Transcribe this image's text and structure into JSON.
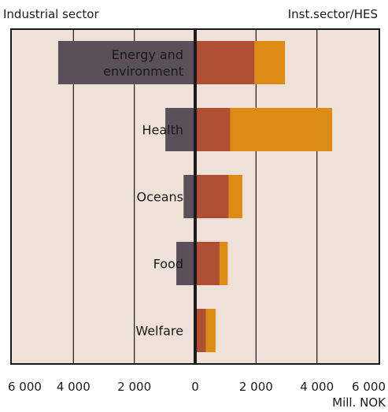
{
  "chart_data": {
    "type": "bar",
    "orientation": "horizontal-diverging",
    "left_label": "Industrial sector",
    "right_label": "Inst.sector/HES",
    "unit_label": "Mill. NOK",
    "xlim": [
      -6000,
      6000
    ],
    "x_ticks": [
      {
        "value": -6000,
        "label": "6 000"
      },
      {
        "value": -4000,
        "label": "4 000"
      },
      {
        "value": -2000,
        "label": "2 000"
      },
      {
        "value": 0,
        "label": "0"
      },
      {
        "value": 2000,
        "label": "2 000"
      },
      {
        "value": 4000,
        "label": "4 000"
      },
      {
        "value": 6000,
        "label": "6 000"
      }
    ],
    "categories": [
      {
        "label": [
          "Energy and",
          "environment"
        ],
        "industrial": 4500,
        "inst": 1950,
        "hes": 1000
      },
      {
        "label": [
          "Health"
        ],
        "industrial": 980,
        "inst": 1150,
        "hes": 3350
      },
      {
        "label": [
          "Oceans"
        ],
        "industrial": 380,
        "inst": 1100,
        "hes": 450
      },
      {
        "label": [
          "Food"
        ],
        "industrial": 620,
        "inst": 800,
        "hes": 270
      },
      {
        "label": [
          "Welfare"
        ],
        "industrial": 0,
        "inst": 350,
        "hes": 320
      }
    ],
    "colors": {
      "background": "#efe0d8",
      "industrial": "#5b5059",
      "inst": "#b14f35",
      "hes": "#de8b16",
      "grid": "#1a1a1a",
      "label_on_dark": "#ffffff",
      "label_on_light": "#1a1a1a"
    }
  }
}
